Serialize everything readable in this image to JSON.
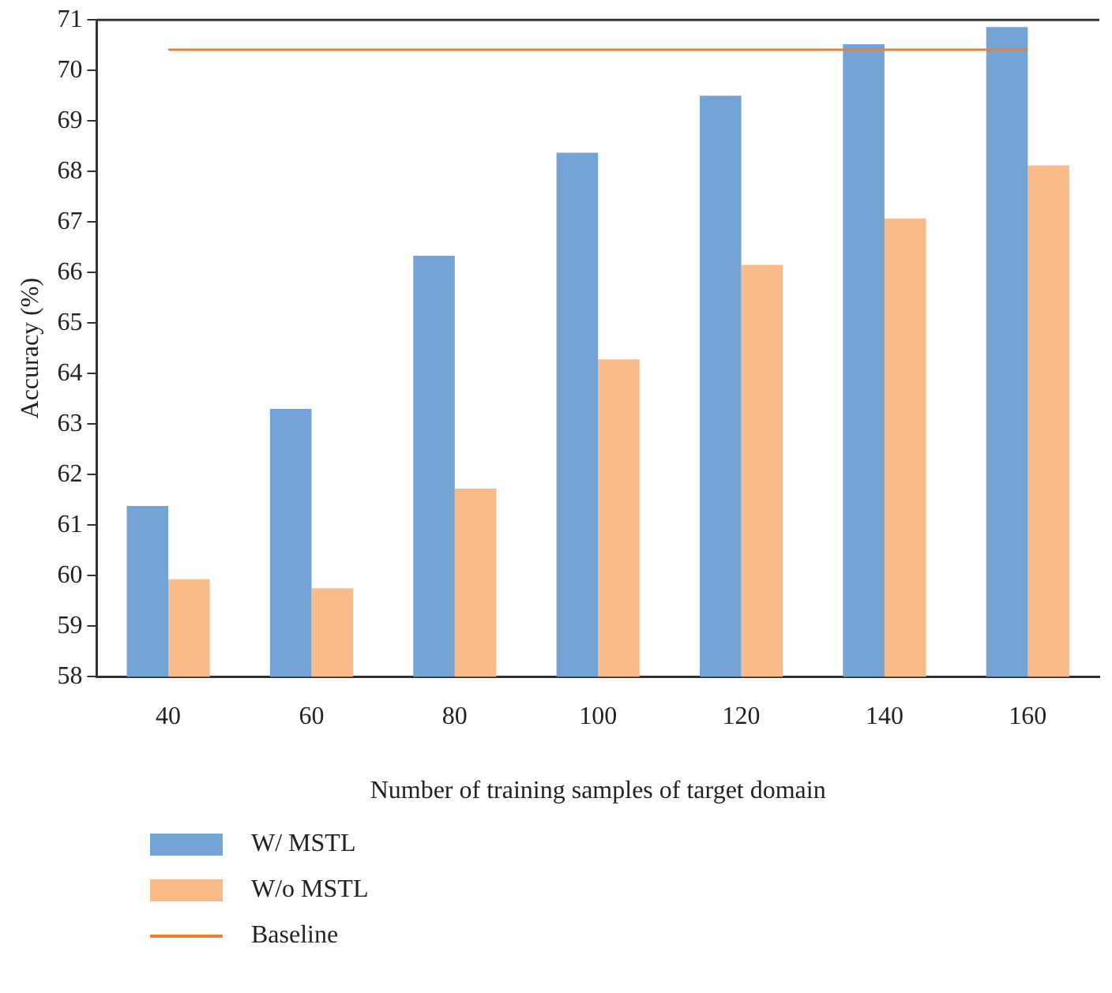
{
  "chart_data": {
    "type": "bar",
    "xlabel": "Number of training samples of target domain",
    "ylabel": "Accuracy (%)",
    "categories": [
      "40",
      "60",
      "80",
      "100",
      "120",
      "140",
      "160"
    ],
    "series": [
      {
        "name": "W/ MSTL",
        "color": "#73a4d5",
        "values": [
          61.38,
          63.3,
          66.33,
          68.37,
          69.5,
          70.52,
          70.86
        ]
      },
      {
        "name": "W/o MSTL",
        "color": "#f9bb89",
        "values": [
          59.93,
          59.75,
          61.72,
          64.28,
          66.15,
          67.07,
          68.12
        ]
      },
      {
        "name": "Baseline",
        "type": "line",
        "color": "#ed7d31",
        "values": [
          70.41,
          70.41,
          70.41,
          70.41,
          70.41,
          70.41,
          70.41
        ]
      }
    ],
    "ylim": [
      58,
      71
    ],
    "yticks": [
      58,
      59,
      60,
      61,
      62,
      63,
      64,
      65,
      66,
      67,
      68,
      69,
      70,
      71
    ],
    "grid": false,
    "legend": "bottom left",
    "marker": "none"
  }
}
